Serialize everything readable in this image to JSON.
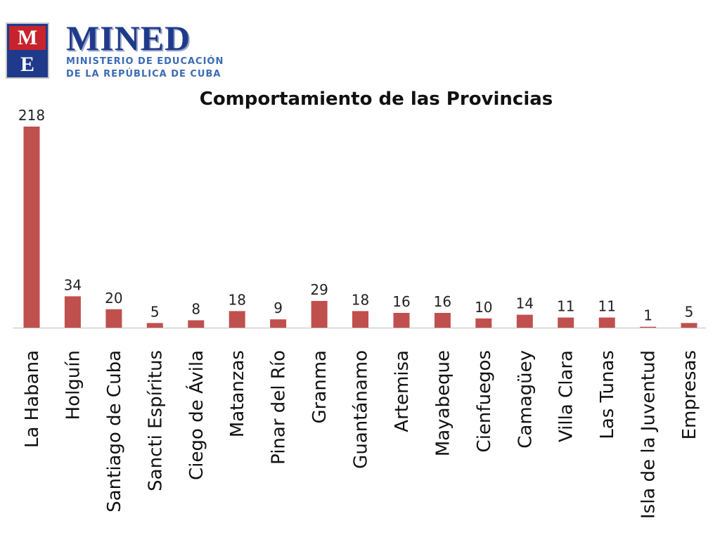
{
  "logo": {
    "mark_top": "M",
    "mark_bottom": "E",
    "wordmark": "MINED",
    "subtitle_line1": "MINISTERIO DE EDUCACIÓN",
    "subtitle_line2": "DE LA REPÚBLICA DE CUBA"
  },
  "colors": {
    "bar": "#c0504d",
    "brand_blue": "#1f3a8a",
    "brand_red": "#c8232c"
  },
  "chart_data": {
    "type": "bar",
    "title": "Comportamiento de las Provincias",
    "xlabel": "",
    "ylabel": "",
    "ylim": [
      0,
      218
    ],
    "grid": false,
    "legend": "none",
    "categories": [
      "La Habana",
      "Holguín",
      "Santiago de Cuba",
      "Sancti Espíritus",
      "Ciego de Ávila",
      "Matanzas",
      "Pinar del Río",
      "Granma",
      "Guantánamo",
      "Artemisa",
      "Mayabeque",
      "Cienfuegos",
      "Camagüey",
      "Villa Clara",
      "Las Tunas",
      "Isla de la Juventud",
      "Empresas"
    ],
    "values": [
      218,
      34,
      20,
      5,
      8,
      18,
      9,
      29,
      18,
      16,
      16,
      10,
      14,
      11,
      11,
      1,
      5
    ],
    "data_labels": [
      "218",
      "34",
      "20",
      "5",
      "8",
      "18",
      "9",
      "29",
      "18",
      "16",
      "16",
      "10",
      "14",
      "11",
      "11",
      "1",
      "5"
    ]
  }
}
